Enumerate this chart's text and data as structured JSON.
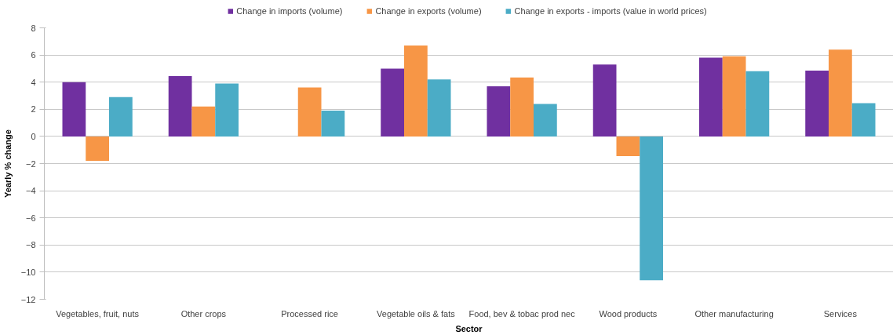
{
  "chart_data": {
    "type": "bar",
    "xlabel": "Sector",
    "ylabel": "Yearly % change",
    "categories": [
      "Vegetables, fruit, nuts",
      "Other crops",
      "Processed rice",
      "Vegetable oils & fats",
      "Food, bev & tobac prod nec",
      "Wood products",
      "Other manufacturing",
      "Services"
    ],
    "series": [
      {
        "name": "Change in imports (volume)",
        "color": "#7030a0",
        "values": [
          4.0,
          4.45,
          null,
          5.0,
          3.7,
          5.3,
          5.8,
          4.85
        ]
      },
      {
        "name": "Change in exports (volume)",
        "color": "#f79646",
        "values": [
          -1.8,
          2.2,
          3.6,
          6.7,
          4.35,
          -1.45,
          5.9,
          6.4
        ]
      },
      {
        "name": "Change in exports - imports (value in world prices)",
        "color": "#4bacc6",
        "values": [
          2.9,
          3.9,
          1.9,
          4.2,
          2.4,
          -10.6,
          4.8,
          2.45
        ]
      }
    ],
    "ylim": [
      -12,
      8
    ],
    "yticks": [
      -12,
      -10,
      -8,
      -6,
      -4,
      -2,
      0,
      2,
      4,
      6,
      8
    ],
    "grid": "y",
    "legend": "top"
  }
}
